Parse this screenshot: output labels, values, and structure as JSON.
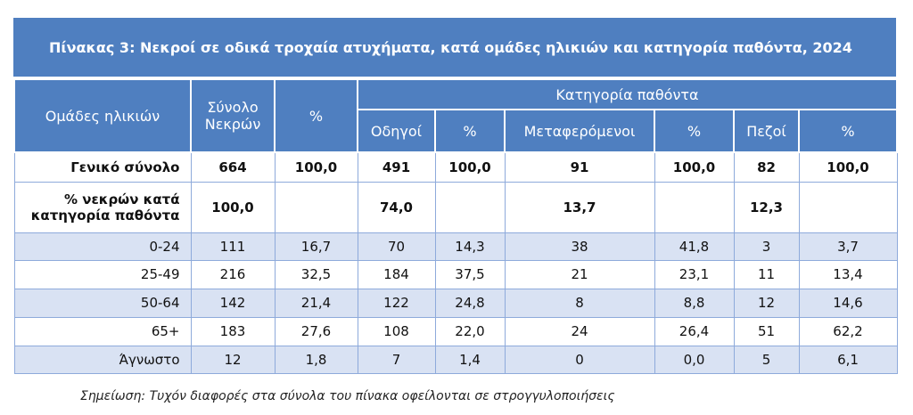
{
  "title": "Πίνακας  3: Νεκροί σε οδικά τροχαία ατυχήματα, κατά ομάδες ηλικιών και κατηγορία παθόντα, 2024",
  "header": {
    "age_groups": "Ομάδες ηλικιών",
    "total_deaths": "Σύνολο Νεκρών",
    "percent": "%",
    "victim_category": "Κατηγορία παθόντα",
    "subcolumns": [
      "Οδηγοί",
      "%",
      "Μεταφερόμενοι",
      "%",
      "Πεζοί",
      "%"
    ]
  },
  "rows": [
    [
      "Γενικό σύνολο",
      "664",
      "100,0",
      "491",
      "100,0",
      "91",
      "100,0",
      "82",
      "100,0"
    ],
    [
      "% νεκρών κατά κατηγορία παθόντα",
      "100,0",
      null,
      "74,0",
      null,
      "13,7",
      null,
      "12,3",
      null
    ],
    [
      "0-24",
      "111",
      "16,7",
      "70",
      "14,3",
      "38",
      "41,8",
      "3",
      "3,7"
    ],
    [
      "25-49",
      "216",
      "32,5",
      "184",
      "37,5",
      "21",
      "23,1",
      "11",
      "13,4"
    ],
    [
      "50-64",
      "142",
      "21,4",
      "122",
      "24,8",
      "8",
      "8,8",
      "12",
      "14,6"
    ],
    [
      "65+",
      "183",
      "27,6",
      "108",
      "22,0",
      "24",
      "26,4",
      "51",
      "62,2"
    ],
    [
      "Άγνωστο",
      "12",
      "1,8",
      "7",
      "1,4",
      "0",
      "0,0",
      "5",
      "6,1"
    ]
  ],
  "note": "Σημείωση: Τυχόν διαφορές στα σύνολα του πίνακα οφείλονται σε στρογγυλοποιήσεις"
}
